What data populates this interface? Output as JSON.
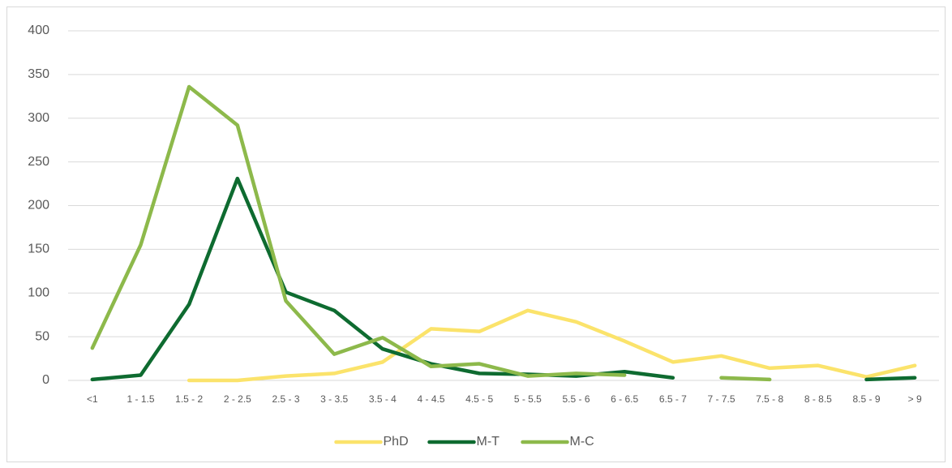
{
  "chart_data": {
    "type": "line",
    "categories": [
      "<1",
      "1 - 1.5",
      "1.5 - 2",
      "2 - 2.5",
      "2.5 - 3",
      "3 - 3.5",
      "3.5 - 4",
      "4 - 4.5",
      "4.5 - 5",
      "5 - 5.5",
      "5.5 - 6",
      "6 - 6.5",
      "6.5 - 7",
      "7 - 7.5",
      "7.5 - 8",
      "8 - 8.5",
      "8.5 - 9",
      "> 9"
    ],
    "series": [
      {
        "name": "PhD",
        "color": "#fbe36b",
        "values": [
          null,
          null,
          0,
          0,
          5,
          8,
          21,
          59,
          56,
          80,
          67,
          45,
          21,
          28,
          14,
          17,
          4,
          17
        ]
      },
      {
        "name": "M-T",
        "color": "#0e6b30",
        "values": [
          1,
          6,
          87,
          231,
          101,
          80,
          36,
          19,
          8,
          7,
          5,
          10,
          3,
          null,
          null,
          null,
          1,
          3
        ]
      },
      {
        "name": "M-C",
        "color": "#8db94b",
        "values": [
          37,
          155,
          336,
          292,
          91,
          30,
          49,
          16,
          19,
          5,
          8,
          6,
          null,
          3,
          1,
          null,
          null,
          null
        ]
      }
    ],
    "ylim": [
      0,
      400
    ],
    "yticks": [
      0,
      50,
      100,
      150,
      200,
      250,
      300,
      350,
      400
    ],
    "grid": true,
    "legend": "bottom"
  }
}
